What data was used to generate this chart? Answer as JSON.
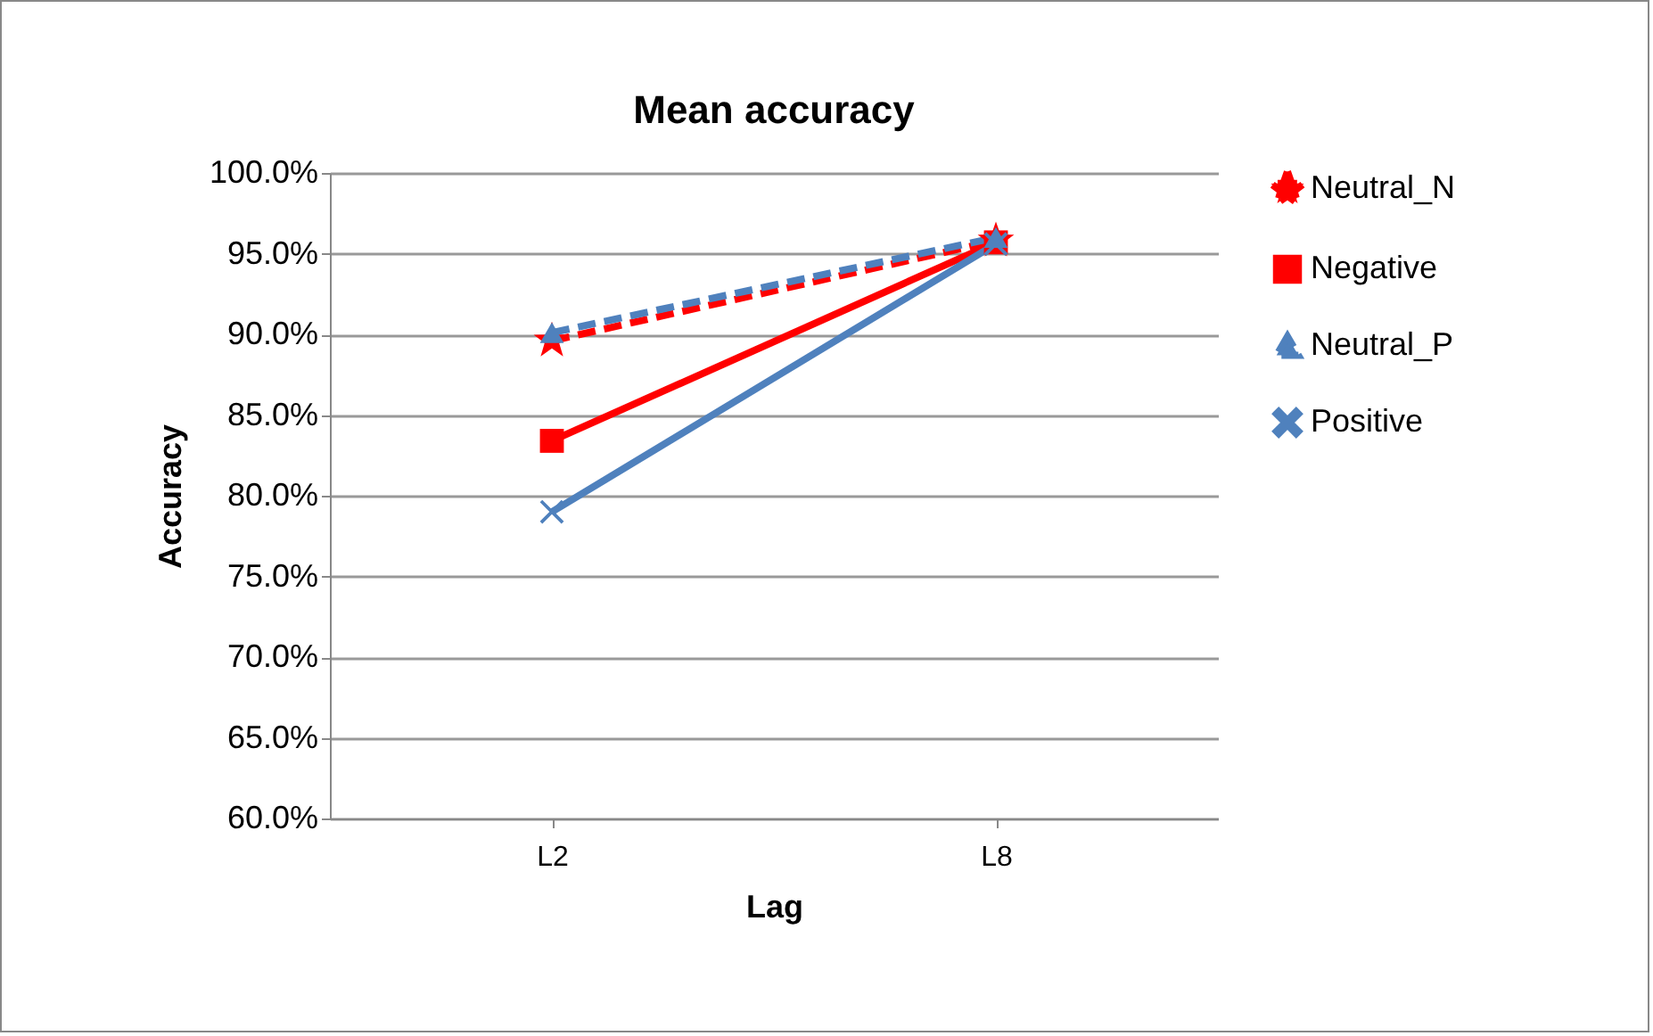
{
  "chart_data": {
    "type": "line",
    "title": "Mean accuracy",
    "xlabel": "Lag",
    "ylabel": "Accuracy",
    "categories": [
      "L2",
      "L8"
    ],
    "series": [
      {
        "name": "Neutral_N",
        "color": "#ff0000",
        "values": [
          89.6,
          95.8
        ],
        "marker": "star",
        "line_style": "dashed"
      },
      {
        "name": "Negative",
        "color": "#ff0000",
        "values": [
          83.4,
          95.7
        ],
        "marker": "square",
        "line_style": "solid"
      },
      {
        "name": "Neutral_P",
        "color": "#4f81bd",
        "values": [
          90.1,
          96.0
        ],
        "marker": "triangle",
        "line_style": "dashed"
      },
      {
        "name": "Positive",
        "color": "#4f81bd",
        "values": [
          79.0,
          95.6
        ],
        "marker": "cross",
        "line_style": "solid"
      }
    ],
    "ylim": [
      60,
      100
    ],
    "yticks": [
      {
        "value": 60,
        "label": "60.0%"
      },
      {
        "value": 65,
        "label": "65.0%"
      },
      {
        "value": 70,
        "label": "70.0%"
      },
      {
        "value": 75,
        "label": "75.0%"
      },
      {
        "value": 80,
        "label": "80.0%"
      },
      {
        "value": 85,
        "label": "85.0%"
      },
      {
        "value": 90,
        "label": "90.0%"
      },
      {
        "value": 95,
        "label": "95.0%"
      },
      {
        "value": 100,
        "label": "100.0%"
      }
    ],
    "grid": "y",
    "legend": "right"
  }
}
